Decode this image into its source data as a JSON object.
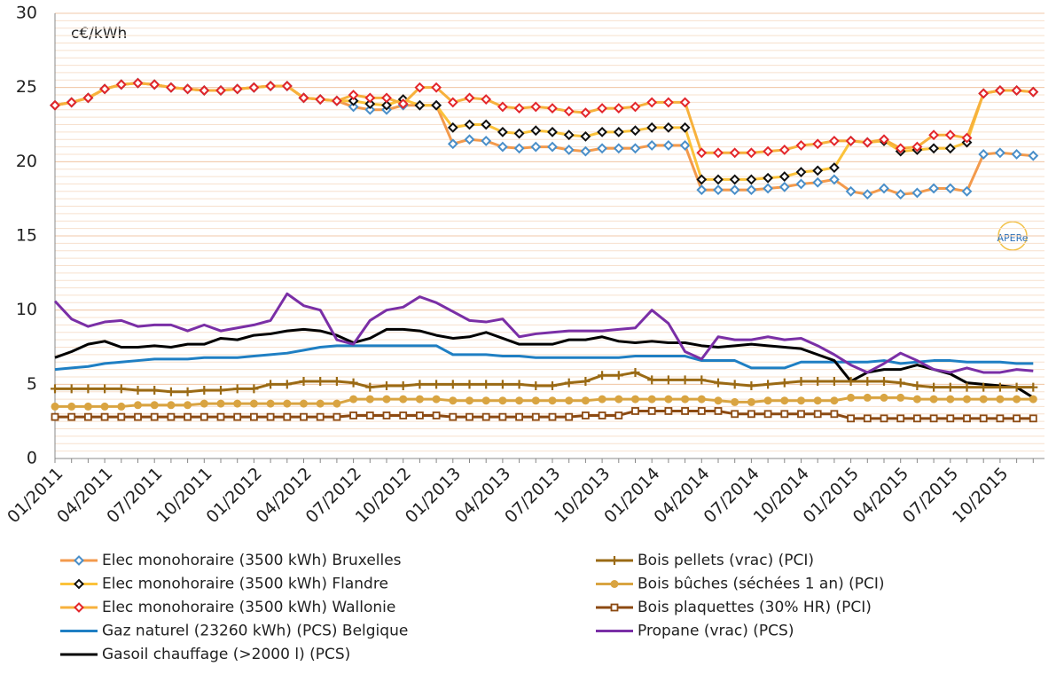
{
  "chart_data": {
    "type": "line",
    "unit_label": "c€/kWh",
    "logo_text": "APERe",
    "categories": [
      "01/2011",
      null,
      null,
      "04/2011",
      null,
      null,
      "07/2011",
      null,
      null,
      "10/2011",
      null,
      null,
      "01/2012",
      null,
      null,
      "04/2012",
      null,
      null,
      "07/2012",
      null,
      null,
      "10/2012",
      null,
      null,
      "01/2013",
      null,
      null,
      "04/2013",
      null,
      null,
      "07/2013",
      null,
      null,
      "10/2013",
      null,
      null,
      "01/2014",
      null,
      null,
      "04/2014",
      null,
      null,
      "07/2014",
      null,
      null,
      "10/2014",
      null,
      null,
      "01/2015",
      null,
      null,
      "04/2015",
      null,
      null,
      "07/2015",
      null,
      null,
      "10/2015",
      null,
      null
    ],
    "ylim": [
      0,
      30
    ],
    "yticks": [
      0,
      5,
      10,
      15,
      20,
      25,
      30
    ],
    "grid": true,
    "series": [
      {
        "name": "Elec monohoraire (3500 kWh) Bruxelles",
        "color": "#f39a4c",
        "marker": "diamond",
        "marker_color": "#4a8fc9",
        "values": [
          23.8,
          24.0,
          24.3,
          24.9,
          25.2,
          25.3,
          25.2,
          25.0,
          24.9,
          24.8,
          24.8,
          24.9,
          25.0,
          25.1,
          25.1,
          24.3,
          24.2,
          24.1,
          23.7,
          23.5,
          23.5,
          23.8,
          23.8,
          23.8,
          21.2,
          21.5,
          21.4,
          21.0,
          20.9,
          21.0,
          21.0,
          20.8,
          20.7,
          20.9,
          20.9,
          20.9,
          21.1,
          21.1,
          21.1,
          18.1,
          18.1,
          18.1,
          18.1,
          18.2,
          18.3,
          18.5,
          18.6,
          18.8,
          18.0,
          17.8,
          18.2,
          17.8,
          17.9,
          18.2,
          18.2,
          18.0,
          20.5,
          20.6,
          20.5,
          20.4
        ]
      },
      {
        "name": "Elec monohoraire (3500 kWh) Flandre",
        "color": "#fbc23a",
        "marker": "diamond",
        "marker_color": "#111111",
        "values": [
          23.8,
          24.0,
          24.3,
          24.9,
          25.2,
          25.3,
          25.2,
          25.0,
          24.9,
          24.8,
          24.8,
          24.9,
          25.0,
          25.1,
          25.1,
          24.3,
          24.2,
          24.1,
          24.1,
          23.9,
          23.8,
          24.2,
          23.8,
          23.8,
          22.3,
          22.5,
          22.5,
          22.0,
          21.9,
          22.1,
          22.0,
          21.8,
          21.7,
          22.0,
          22.0,
          22.1,
          22.3,
          22.3,
          22.3,
          18.8,
          18.8,
          18.8,
          18.8,
          18.9,
          19.0,
          19.3,
          19.4,
          19.6,
          21.4,
          21.3,
          21.4,
          20.7,
          20.8,
          20.9,
          20.9,
          21.3,
          24.6,
          24.8,
          24.8,
          24.7
        ]
      },
      {
        "name": "Elec monohoraire (3500 kWh) Wallonie",
        "color": "#f7b13c",
        "marker": "diamond",
        "marker_color": "#e3262b",
        "values": [
          23.8,
          24.0,
          24.3,
          24.9,
          25.2,
          25.3,
          25.2,
          25.0,
          24.9,
          24.8,
          24.8,
          24.9,
          25.0,
          25.1,
          25.1,
          24.3,
          24.2,
          24.1,
          24.5,
          24.3,
          24.3,
          23.9,
          25.0,
          25.0,
          24.0,
          24.3,
          24.2,
          23.7,
          23.6,
          23.7,
          23.6,
          23.4,
          23.3,
          23.6,
          23.6,
          23.7,
          24.0,
          24.0,
          24.0,
          20.6,
          20.6,
          20.6,
          20.6,
          20.7,
          20.8,
          21.1,
          21.2,
          21.4,
          21.4,
          21.3,
          21.5,
          20.9,
          21.0,
          21.8,
          21.8,
          21.6,
          24.6,
          24.8,
          24.8,
          24.7
        ]
      },
      {
        "name": "Gaz naturel (23260 kWh) (PCS) Belgique",
        "color": "#1f7fc3",
        "marker": "none",
        "values": [
          6.0,
          6.1,
          6.2,
          6.4,
          6.5,
          6.6,
          6.7,
          6.7,
          6.7,
          6.8,
          6.8,
          6.8,
          6.9,
          7.0,
          7.1,
          7.3,
          7.5,
          7.6,
          7.6,
          7.6,
          7.6,
          7.6,
          7.6,
          7.6,
          7.0,
          7.0,
          7.0,
          6.9,
          6.9,
          6.8,
          6.8,
          6.8,
          6.8,
          6.8,
          6.8,
          6.9,
          6.9,
          6.9,
          6.9,
          6.6,
          6.6,
          6.6,
          6.1,
          6.1,
          6.1,
          6.5,
          6.5,
          6.5,
          6.5,
          6.5,
          6.6,
          6.4,
          6.5,
          6.6,
          6.6,
          6.5,
          6.5,
          6.5,
          6.4,
          6.4
        ]
      },
      {
        "name": "Gasoil chauffage (>2000 l) (PCS)",
        "color": "#000000",
        "marker": "none",
        "values": [
          6.8,
          7.2,
          7.7,
          7.9,
          7.5,
          7.5,
          7.6,
          7.5,
          7.7,
          7.7,
          8.1,
          8.0,
          8.3,
          8.4,
          8.6,
          8.7,
          8.6,
          8.3,
          7.8,
          8.1,
          8.7,
          8.7,
          8.6,
          8.3,
          8.1,
          8.2,
          8.5,
          8.1,
          7.7,
          7.7,
          7.7,
          8.0,
          8.0,
          8.2,
          7.9,
          7.8,
          7.9,
          7.8,
          7.8,
          7.6,
          7.5,
          7.6,
          7.7,
          7.6,
          7.5,
          7.4,
          7.0,
          6.6,
          5.2,
          5.8,
          6.0,
          6.0,
          6.3,
          6.0,
          5.7,
          5.1,
          5.0,
          4.9,
          4.8,
          4.1
        ]
      },
      {
        "name": "Bois pellets (vrac) (PCI)",
        "color": "#9a6a14",
        "marker": "plus",
        "marker_color": "#9a6a14",
        "values": [
          4.7,
          4.7,
          4.7,
          4.7,
          4.7,
          4.6,
          4.6,
          4.5,
          4.5,
          4.6,
          4.6,
          4.7,
          4.7,
          5.0,
          5.0,
          5.2,
          5.2,
          5.2,
          5.1,
          4.8,
          4.9,
          4.9,
          5.0,
          5.0,
          5.0,
          5.0,
          5.0,
          5.0,
          5.0,
          4.9,
          4.9,
          5.1,
          5.2,
          5.6,
          5.6,
          5.8,
          5.3,
          5.3,
          5.3,
          5.3,
          5.1,
          5.0,
          4.9,
          5.0,
          5.1,
          5.2,
          5.2,
          5.2,
          5.2,
          5.2,
          5.2,
          5.1,
          4.9,
          4.8,
          4.8,
          4.8,
          4.8,
          4.8,
          4.8,
          4.8
        ]
      },
      {
        "name": "Bois bûches (séchées 1 an) (PCI)",
        "color": "#d9a441",
        "marker": "circle",
        "marker_color": "#d9a441",
        "values": [
          3.5,
          3.5,
          3.5,
          3.5,
          3.5,
          3.6,
          3.6,
          3.6,
          3.6,
          3.7,
          3.7,
          3.7,
          3.7,
          3.7,
          3.7,
          3.7,
          3.7,
          3.7,
          4.0,
          4.0,
          4.0,
          4.0,
          4.0,
          4.0,
          3.9,
          3.9,
          3.9,
          3.9,
          3.9,
          3.9,
          3.9,
          3.9,
          3.9,
          4.0,
          4.0,
          4.0,
          4.0,
          4.0,
          4.0,
          4.0,
          3.9,
          3.8,
          3.8,
          3.9,
          3.9,
          3.9,
          3.9,
          3.9,
          4.1,
          4.1,
          4.1,
          4.1,
          4.0,
          4.0,
          4.0,
          4.0,
          4.0,
          4.0,
          4.0,
          4.0
        ]
      },
      {
        "name": "Bois plaquettes (30% HR) (PCI)",
        "color": "#8c4a12",
        "marker": "square",
        "marker_color": "#8c4a12",
        "values": [
          2.8,
          2.8,
          2.8,
          2.8,
          2.8,
          2.8,
          2.8,
          2.8,
          2.8,
          2.8,
          2.8,
          2.8,
          2.8,
          2.8,
          2.8,
          2.8,
          2.8,
          2.8,
          2.9,
          2.9,
          2.9,
          2.9,
          2.9,
          2.9,
          2.8,
          2.8,
          2.8,
          2.8,
          2.8,
          2.8,
          2.8,
          2.8,
          2.9,
          2.9,
          2.9,
          3.2,
          3.2,
          3.2,
          3.2,
          3.2,
          3.2,
          3.0,
          3.0,
          3.0,
          3.0,
          3.0,
          3.0,
          3.0,
          2.7,
          2.7,
          2.7,
          2.7,
          2.7,
          2.7,
          2.7,
          2.7,
          2.7,
          2.7,
          2.7,
          2.7
        ]
      },
      {
        "name": "Propane (vrac) (PCS)",
        "color": "#7a2fa6",
        "marker": "none",
        "values": [
          10.6,
          9.4,
          8.9,
          9.2,
          9.3,
          8.9,
          9.0,
          9.0,
          8.6,
          9.0,
          8.6,
          8.8,
          9.0,
          9.3,
          11.1,
          10.3,
          10.0,
          8.0,
          7.7,
          9.3,
          10.0,
          10.2,
          10.9,
          10.5,
          9.9,
          9.3,
          9.2,
          9.4,
          8.2,
          8.4,
          8.5,
          8.6,
          8.6,
          8.6,
          8.7,
          8.8,
          10.0,
          9.1,
          7.2,
          6.7,
          8.2,
          8.0,
          8.0,
          8.2,
          8.0,
          8.1,
          7.6,
          7.0,
          6.3,
          5.8,
          6.4,
          7.1,
          6.6,
          6.0,
          5.8,
          6.1,
          5.8,
          5.8,
          6.0,
          5.9
        ]
      }
    ]
  }
}
